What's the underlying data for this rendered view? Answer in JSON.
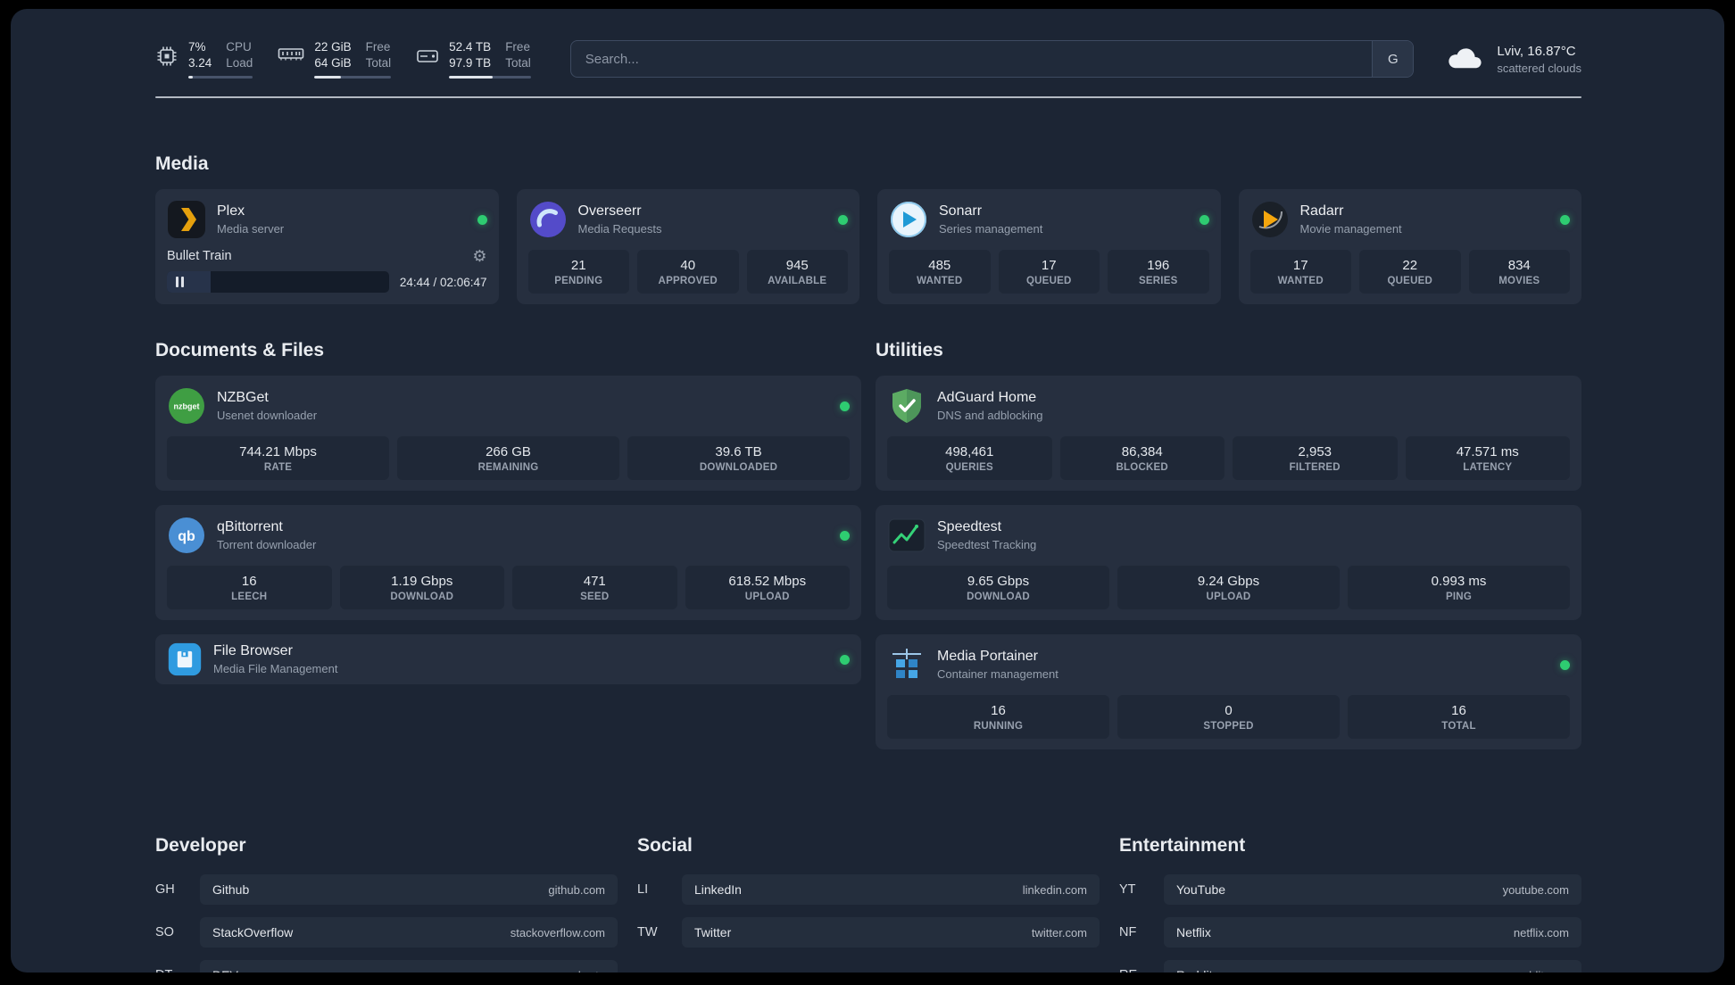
{
  "topbar": {
    "cpu": {
      "value_top": "7%",
      "value_bottom": "3.24",
      "label_top": "CPU",
      "label_bottom": "Load",
      "bar_percent": 7
    },
    "memory": {
      "value_top": "22 GiB",
      "value_bottom": "64 GiB",
      "label_top": "Free",
      "label_bottom": "Total",
      "bar_percent": 35
    },
    "disk": {
      "value_top": "52.4 TB",
      "value_bottom": "97.9 TB",
      "label_top": "Free",
      "label_bottom": "Total",
      "bar_percent": 53
    },
    "search": {
      "placeholder": "Search...",
      "provider_label": "G"
    },
    "weather": {
      "location": "Lviv, 16.87°C",
      "condition": "scattered clouds"
    }
  },
  "icons": {
    "nzbget_text": "nzbget",
    "qb_text": "qb"
  },
  "sections": {
    "media": {
      "title": "Media",
      "plex": {
        "name": "Plex",
        "subtitle": "Media server",
        "track": "Bullet Train",
        "time": "24:44 / 02:06:47",
        "progress_percent": 19.5
      },
      "overseerr": {
        "name": "Overseerr",
        "subtitle": "Media Requests",
        "stats": [
          {
            "value": "21",
            "label": "PENDING"
          },
          {
            "value": "40",
            "label": "APPROVED"
          },
          {
            "value": "945",
            "label": "AVAILABLE"
          }
        ]
      },
      "sonarr": {
        "name": "Sonarr",
        "subtitle": "Series management",
        "stats": [
          {
            "value": "485",
            "label": "WANTED"
          },
          {
            "value": "17",
            "label": "QUEUED"
          },
          {
            "value": "196",
            "label": "SERIES"
          }
        ]
      },
      "radarr": {
        "name": "Radarr",
        "subtitle": "Movie management",
        "stats": [
          {
            "value": "17",
            "label": "WANTED"
          },
          {
            "value": "22",
            "label": "QUEUED"
          },
          {
            "value": "834",
            "label": "MOVIES"
          }
        ]
      }
    },
    "documents": {
      "title": "Documents & Files",
      "nzbget": {
        "name": "NZBGet",
        "subtitle": "Usenet downloader",
        "stats": [
          {
            "value": "744.21 Mbps",
            "label": "RATE"
          },
          {
            "value": "266 GB",
            "label": "REMAINING"
          },
          {
            "value": "39.6 TB",
            "label": "DOWNLOADED"
          }
        ]
      },
      "qbittorrent": {
        "name": "qBittorrent",
        "subtitle": "Torrent downloader",
        "stats": [
          {
            "value": "16",
            "label": "LEECH"
          },
          {
            "value": "1.19 Gbps",
            "label": "DOWNLOAD"
          },
          {
            "value": "471",
            "label": "SEED"
          },
          {
            "value": "618.52 Mbps",
            "label": "UPLOAD"
          }
        ]
      },
      "filebrowser": {
        "name": "File Browser",
        "subtitle": "Media File Management"
      }
    },
    "utilities": {
      "title": "Utilities",
      "adguard": {
        "name": "AdGuard Home",
        "subtitle": "DNS and adblocking",
        "stats": [
          {
            "value": "498,461",
            "label": "QUERIES"
          },
          {
            "value": "86,384",
            "label": "BLOCKED"
          },
          {
            "value": "2,953",
            "label": "FILTERED"
          },
          {
            "value": "47.571 ms",
            "label": "LATENCY"
          }
        ]
      },
      "speedtest": {
        "name": "Speedtest",
        "subtitle": "Speedtest Tracking",
        "stats": [
          {
            "value": "9.65 Gbps",
            "label": "DOWNLOAD"
          },
          {
            "value": "9.24 Gbps",
            "label": "UPLOAD"
          },
          {
            "value": "0.993 ms",
            "label": "PING"
          }
        ]
      },
      "portainer": {
        "name": "Media Portainer",
        "subtitle": "Container management",
        "stats": [
          {
            "value": "16",
            "label": "RUNNING"
          },
          {
            "value": "0",
            "label": "STOPPED"
          },
          {
            "value": "16",
            "label": "TOTAL"
          }
        ]
      }
    },
    "bookmarks": {
      "developer": {
        "title": "Developer",
        "items": [
          {
            "abbr": "GH",
            "name": "Github",
            "domain": "github.com"
          },
          {
            "abbr": "SO",
            "name": "StackOverflow",
            "domain": "stackoverflow.com"
          },
          {
            "abbr": "DT",
            "name": "DEV",
            "domain": "dev.to"
          }
        ]
      },
      "social": {
        "title": "Social",
        "items": [
          {
            "abbr": "LI",
            "name": "LinkedIn",
            "domain": "linkedin.com"
          },
          {
            "abbr": "TW",
            "name": "Twitter",
            "domain": "twitter.com"
          }
        ]
      },
      "entertainment": {
        "title": "Entertainment",
        "items": [
          {
            "abbr": "YT",
            "name": "YouTube",
            "domain": "youtube.com"
          },
          {
            "abbr": "NF",
            "name": "Netflix",
            "domain": "netflix.com"
          },
          {
            "abbr": "RE",
            "name": "Reddit",
            "domain": "reddit.com"
          }
        ]
      }
    }
  },
  "colors": {
    "status_green": "#2ecc71",
    "plex_amber": "#e5a00d"
  }
}
